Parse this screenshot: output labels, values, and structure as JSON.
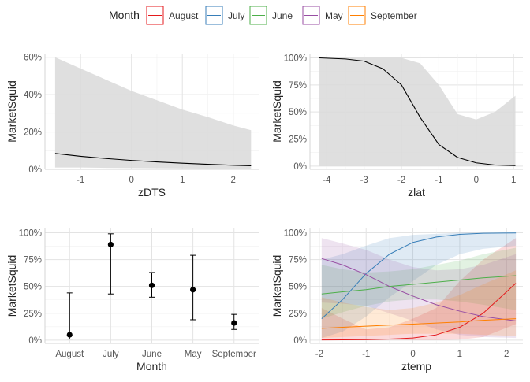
{
  "legend": {
    "title": "Month",
    "items": [
      {
        "label": "August",
        "color": "#E41A1C"
      },
      {
        "label": "July",
        "color": "#377EB8"
      },
      {
        "label": "June",
        "color": "#4DAF4A"
      },
      {
        "label": "May",
        "color": "#984EA3"
      },
      {
        "label": "September",
        "color": "#FF7F00"
      }
    ]
  },
  "chart_data": [
    {
      "type": "line",
      "xlabel": "zDTS",
      "ylabel": "MarketSquid",
      "xlim": [
        -1.7,
        2.5
      ],
      "ylim": [
        0,
        0.62
      ],
      "xticks": [
        -1,
        0,
        1,
        2
      ],
      "yticks": [
        0,
        0.2,
        0.4,
        0.6
      ],
      "ytick_labels": [
        "0%",
        "20%",
        "40%",
        "60%"
      ],
      "series": [
        {
          "x": [
            -1.5,
            -1.0,
            -0.5,
            0.0,
            0.5,
            1.0,
            1.5,
            2.0,
            2.35
          ],
          "y": [
            0.085,
            0.07,
            0.058,
            0.048,
            0.04,
            0.033,
            0.027,
            0.022,
            0.019
          ],
          "lower": [
            0.01,
            0.01,
            0.008,
            0.007,
            0.006,
            0.005,
            0.004,
            0.003,
            0.003
          ],
          "upper": [
            0.6,
            0.54,
            0.48,
            0.42,
            0.37,
            0.32,
            0.28,
            0.235,
            0.21
          ],
          "color": "#000000"
        }
      ]
    },
    {
      "type": "line",
      "xlabel": "zlat",
      "ylabel": "MarketSquid",
      "xlim": [
        -4.45,
        1.25
      ],
      "ylim": [
        -0.03,
        1.04
      ],
      "xticks": [
        -4,
        -3,
        -2,
        -1,
        0,
        1
      ],
      "yticks": [
        0,
        0.25,
        0.5,
        0.75,
        1.0
      ],
      "ytick_labels": [
        "0%",
        "25%",
        "50%",
        "75%",
        "100%"
      ],
      "series": [
        {
          "x": [
            -4.2,
            -3.5,
            -3.0,
            -2.5,
            -2.0,
            -1.5,
            -1.0,
            -0.5,
            0.0,
            0.5,
            1.05
          ],
          "y": [
            1.0,
            0.99,
            0.97,
            0.9,
            0.75,
            0.45,
            0.2,
            0.08,
            0.03,
            0.01,
            0.005
          ],
          "lower": [
            0.0,
            0.0,
            0.0,
            0.0,
            0.0,
            0.0,
            0.0,
            0.0,
            0.0,
            0.0,
            0.0
          ],
          "upper": [
            1.0,
            1.0,
            1.0,
            1.0,
            1.0,
            0.95,
            0.75,
            0.48,
            0.43,
            0.5,
            0.65
          ],
          "color": "#000000"
        }
      ]
    },
    {
      "type": "scatter",
      "xlabel": "Month",
      "ylabel": "MarketSquid",
      "categories": [
        "August",
        "July",
        "June",
        "May",
        "September"
      ],
      "ylim": [
        -0.03,
        1.04
      ],
      "yticks": [
        0,
        0.25,
        0.5,
        0.75,
        1.0
      ],
      "ytick_labels": [
        "0%",
        "25%",
        "50%",
        "75%",
        "100%"
      ],
      "values": [
        0.05,
        0.89,
        0.51,
        0.47,
        0.16
      ],
      "lower": [
        0.01,
        0.43,
        0.4,
        0.19,
        0.1
      ],
      "upper": [
        0.44,
        0.99,
        0.63,
        0.79,
        0.24
      ]
    },
    {
      "type": "line",
      "xlabel": "ztemp",
      "ylabel": "MarketSquid",
      "xlim": [
        -2.2,
        2.35
      ],
      "ylim": [
        -0.03,
        1.04
      ],
      "xticks": [
        -2,
        -1,
        0,
        1,
        2
      ],
      "yticks": [
        0,
        0.25,
        0.5,
        0.75,
        1.0
      ],
      "ytick_labels": [
        "0%",
        "25%",
        "50%",
        "75%",
        "100%"
      ],
      "series": [
        {
          "name": "August",
          "color": "#E41A1C",
          "x": [
            -1.95,
            -1.5,
            -1.0,
            -0.5,
            0.0,
            0.5,
            1.0,
            1.5,
            2.2
          ],
          "y": [
            0.002,
            0.003,
            0.005,
            0.01,
            0.02,
            0.05,
            0.12,
            0.25,
            0.53
          ],
          "lower": [
            0.0,
            0.0,
            0.0,
            0.0,
            0.0,
            0.0,
            0.005,
            0.03,
            0.15
          ],
          "upper": [
            0.3,
            0.2,
            0.1,
            0.12,
            0.2,
            0.3,
            0.55,
            0.75,
            0.95
          ]
        },
        {
          "name": "July",
          "color": "#377EB8",
          "x": [
            -1.95,
            -1.5,
            -1.0,
            -0.5,
            0.0,
            0.5,
            1.0,
            1.5,
            2.2
          ],
          "y": [
            0.2,
            0.38,
            0.62,
            0.8,
            0.91,
            0.96,
            0.985,
            0.995,
            0.998
          ],
          "lower": [
            0.02,
            0.08,
            0.22,
            0.4,
            0.55,
            0.7,
            0.8,
            0.85,
            0.88
          ],
          "upper": [
            0.75,
            0.8,
            0.88,
            0.95,
            0.98,
            0.99,
            1.0,
            1.0,
            1.0
          ]
        },
        {
          "name": "June",
          "color": "#4DAF4A",
          "x": [
            -1.95,
            -1.5,
            -1.0,
            -0.5,
            0.0,
            0.5,
            1.0,
            1.5,
            2.2
          ],
          "y": [
            0.43,
            0.45,
            0.47,
            0.5,
            0.52,
            0.54,
            0.56,
            0.58,
            0.6
          ],
          "lower": [
            0.2,
            0.26,
            0.32,
            0.36,
            0.38,
            0.38,
            0.36,
            0.33,
            0.28
          ],
          "upper": [
            0.7,
            0.66,
            0.63,
            0.64,
            0.66,
            0.7,
            0.74,
            0.8,
            0.86
          ]
        },
        {
          "name": "May",
          "color": "#984EA3",
          "x": [
            -1.95,
            -1.5,
            -1.0,
            -0.5,
            0.0,
            0.5,
            1.0,
            1.5,
            2.2
          ],
          "y": [
            0.76,
            0.7,
            0.61,
            0.5,
            0.41,
            0.33,
            0.27,
            0.22,
            0.18
          ],
          "lower": [
            0.35,
            0.34,
            0.32,
            0.25,
            0.18,
            0.1,
            0.05,
            0.03,
            0.02
          ],
          "upper": [
            0.95,
            0.9,
            0.84,
            0.75,
            0.68,
            0.65,
            0.66,
            0.7,
            0.8
          ]
        },
        {
          "name": "September",
          "color": "#FF7F00",
          "x": [
            -1.95,
            -1.5,
            -1.0,
            -0.5,
            0.0,
            0.5,
            1.0,
            1.5,
            2.2
          ],
          "y": [
            0.11,
            0.12,
            0.13,
            0.14,
            0.15,
            0.16,
            0.17,
            0.185,
            0.2
          ],
          "lower": [
            0.02,
            0.03,
            0.04,
            0.05,
            0.06,
            0.06,
            0.06,
            0.05,
            0.04
          ],
          "upper": [
            0.4,
            0.35,
            0.31,
            0.28,
            0.3,
            0.35,
            0.42,
            0.52,
            0.65
          ]
        }
      ]
    }
  ]
}
